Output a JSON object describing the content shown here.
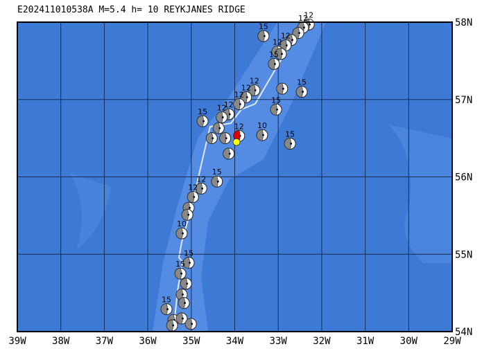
{
  "map_data": {
    "title": "E202411010538A M=5.4 h= 10 REYKJANES RIDGE",
    "lonlim": [
      -39,
      -29
    ],
    "latlim": [
      54,
      58
    ],
    "lonticks": [
      {
        "value": -39,
        "label": "39W"
      },
      {
        "value": -38,
        "label": "38W"
      },
      {
        "value": -37,
        "label": "37W"
      },
      {
        "value": -36,
        "label": "36W"
      },
      {
        "value": -35,
        "label": "35W"
      },
      {
        "value": -34,
        "label": "34W"
      },
      {
        "value": -33,
        "label": "33W"
      },
      {
        "value": -32,
        "label": "32W"
      },
      {
        "value": -31,
        "label": "31W"
      },
      {
        "value": -30,
        "label": "30W"
      },
      {
        "value": -29,
        "label": "29W"
      }
    ],
    "latticks": [
      {
        "value": 54,
        "label": "54N"
      },
      {
        "value": 55,
        "label": "55N"
      },
      {
        "value": 56,
        "label": "56N"
      },
      {
        "value": 57,
        "label": "57N"
      },
      {
        "value": 58,
        "label": "58N"
      }
    ],
    "main_event": {
      "lon": -33.9,
      "lat": 56.53,
      "color": "#e00000",
      "depth": 12
    },
    "epicenter": {
      "lon": -33.96,
      "lat": 56.45,
      "color": "#ffff00"
    },
    "events": [
      {
        "lon": -32.3,
        "lat": 57.97,
        "depth": 12
      },
      {
        "lon": -32.43,
        "lat": 57.93,
        "depth": 12
      },
      {
        "lon": -32.54,
        "lat": 57.86
      },
      {
        "lon": -32.7,
        "lat": 57.77
      },
      {
        "lon": -32.83,
        "lat": 57.7,
        "depth": 12
      },
      {
        "lon": -33.02,
        "lat": 57.62,
        "depth": 12
      },
      {
        "lon": -32.94,
        "lat": 57.59
      },
      {
        "lon": -33.1,
        "lat": 57.46,
        "depth": 15
      },
      {
        "lon": -33.34,
        "lat": 57.82,
        "depth": 15
      },
      {
        "lon": -32.46,
        "lat": 57.1,
        "depth": 15
      },
      {
        "lon": -32.91,
        "lat": 57.14
      },
      {
        "lon": -33.05,
        "lat": 56.87,
        "depth": 15
      },
      {
        "lon": -33.37,
        "lat": 56.54,
        "depth": 10
      },
      {
        "lon": -32.73,
        "lat": 56.43,
        "depth": 15
      },
      {
        "lon": -33.55,
        "lat": 57.12,
        "depth": 12
      },
      {
        "lon": -33.74,
        "lat": 57.03,
        "depth": 12
      },
      {
        "lon": -33.9,
        "lat": 56.94,
        "depth": 12
      },
      {
        "lon": -34.14,
        "lat": 56.81,
        "depth": 12
      },
      {
        "lon": -34.3,
        "lat": 56.77,
        "depth": 12
      },
      {
        "lon": -34.74,
        "lat": 56.72,
        "depth": 15
      },
      {
        "lon": -34.37,
        "lat": 56.63
      },
      {
        "lon": -34.53,
        "lat": 56.5
      },
      {
        "lon": -34.22,
        "lat": 56.5
      },
      {
        "lon": -34.14,
        "lat": 56.3
      },
      {
        "lon": -34.41,
        "lat": 55.94,
        "depth": 15
      },
      {
        "lon": -34.77,
        "lat": 55.85,
        "depth": 12
      },
      {
        "lon": -34.96,
        "lat": 55.74,
        "depth": 12
      },
      {
        "lon": -35.06,
        "lat": 55.6
      },
      {
        "lon": -35.09,
        "lat": 55.51
      },
      {
        "lon": -35.22,
        "lat": 55.27,
        "depth": 10
      },
      {
        "lon": -35.06,
        "lat": 54.89,
        "depth": 15
      },
      {
        "lon": -35.25,
        "lat": 54.75,
        "depth": 15
      },
      {
        "lon": -35.12,
        "lat": 54.62
      },
      {
        "lon": -35.22,
        "lat": 54.48
      },
      {
        "lon": -35.17,
        "lat": 54.37
      },
      {
        "lon": -35.57,
        "lat": 54.29,
        "depth": 15
      },
      {
        "lon": -35.41,
        "lat": 54.15
      },
      {
        "lon": -35.22,
        "lat": 54.17
      },
      {
        "lon": -35.01,
        "lat": 54.1
      },
      {
        "lon": -35.44,
        "lat": 54.08
      }
    ]
  }
}
